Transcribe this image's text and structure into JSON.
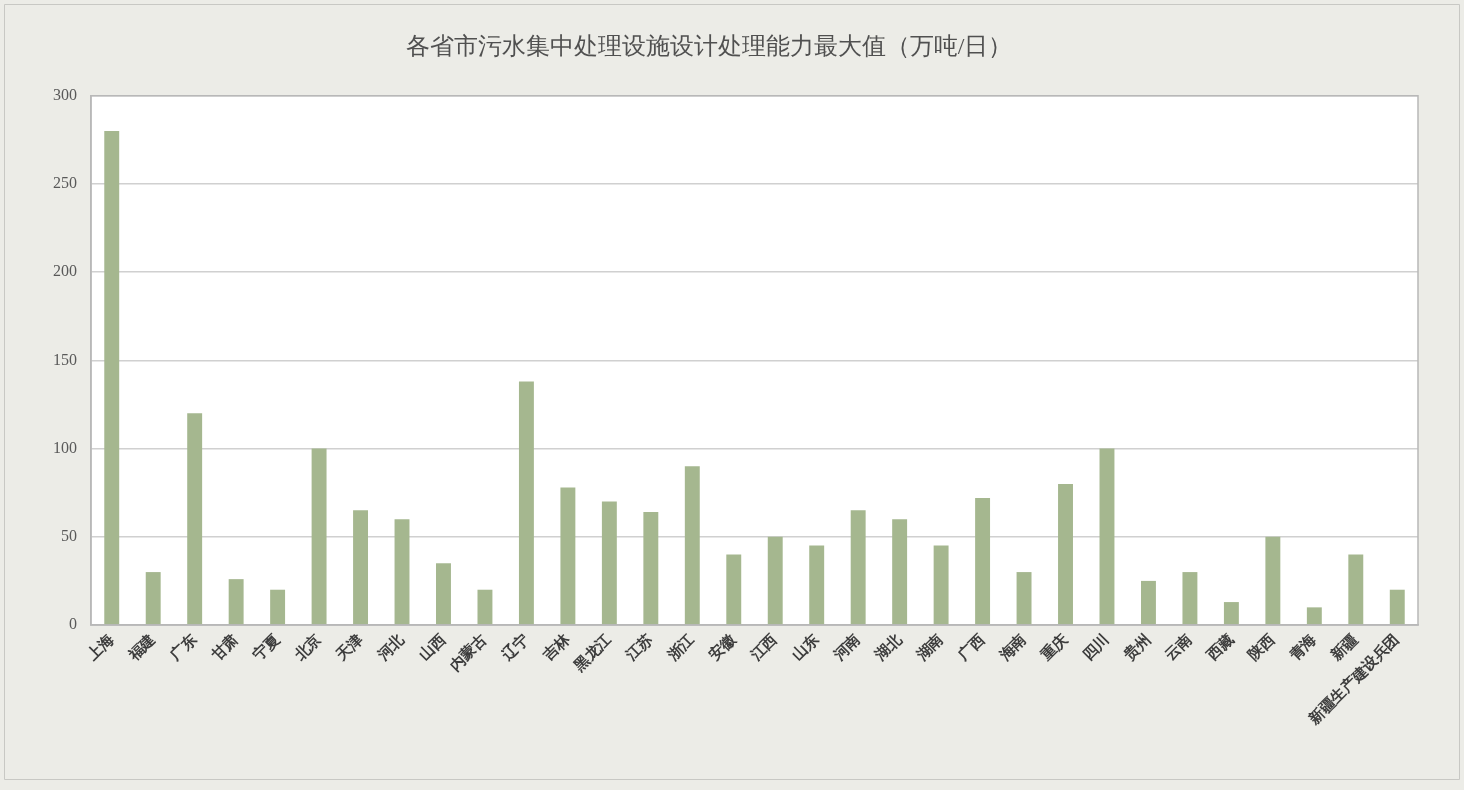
{
  "chart_data": {
    "type": "bar",
    "title": "各省市污水集中处理设施设计处理能力最大值（万吨/日）",
    "categories": [
      "上海",
      "福建",
      "广东",
      "甘肃",
      "宁夏",
      "北京",
      "天津",
      "河北",
      "山西",
      "内蒙古",
      "辽宁",
      "吉林",
      "黑龙江",
      "江苏",
      "浙江",
      "安徽",
      "江西",
      "山东",
      "河南",
      "湖北",
      "湖南",
      "广西",
      "海南",
      "重庆",
      "四川",
      "贵州",
      "云南",
      "西藏",
      "陕西",
      "青海",
      "新疆",
      "新疆生产建设兵团"
    ],
    "values": [
      280,
      30,
      120,
      26,
      20,
      100,
      65,
      60,
      35,
      20,
      138,
      78,
      70,
      64,
      90,
      40,
      50,
      45,
      65,
      60,
      45,
      72,
      30,
      80,
      100,
      25,
      30,
      13,
      50,
      10,
      40,
      20
    ],
    "color": "#a5b78f",
    "ylim": [
      0,
      300
    ],
    "yticks": [
      0,
      50,
      100,
      150,
      200,
      250,
      300
    ],
    "grid": "y"
  }
}
